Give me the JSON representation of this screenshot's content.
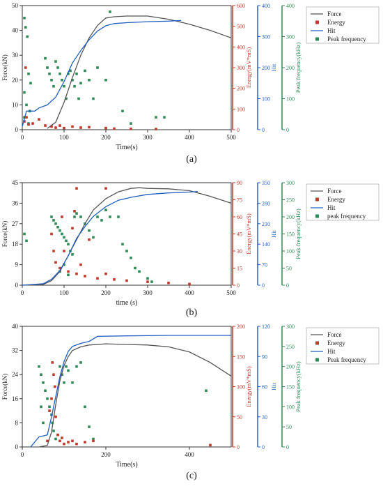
{
  "chart_data": [
    {
      "panel": "(a)",
      "type": "line",
      "xlabel": "Time(s)",
      "xlim": [
        0,
        500
      ],
      "xticks": [
        0,
        100,
        200,
        300,
        400,
        500
      ],
      "axes": [
        {
          "label": "Force(kN)",
          "lim": [
            0,
            50
          ],
          "ticks": [
            0,
            10,
            20,
            30,
            40,
            50
          ],
          "color": "#333333"
        },
        {
          "label": "Energy(mV*mS)",
          "lim": [
            0,
            600
          ],
          "ticks": [
            0,
            100,
            200,
            300,
            400,
            500,
            600
          ],
          "color": "#c0392b"
        },
        {
          "label": "Hit",
          "lim": [
            0,
            400
          ],
          "ticks": [
            0,
            100,
            200,
            300,
            400
          ],
          "color": "#1f5fbf"
        },
        {
          "label": "Peak frequency(kHz)",
          "lim": [
            0,
            400
          ],
          "ticks": [
            0,
            100,
            200,
            300,
            400
          ],
          "color": "#2e8b57"
        }
      ],
      "legend": [
        "Force",
        "Energy",
        "Hit",
        "Peak frequency"
      ],
      "series": [
        {
          "name": "Force",
          "axis": 0,
          "x": [
            60,
            80,
            100,
            120,
            140,
            160,
            180,
            200,
            220,
            250,
            300,
            350,
            400,
            450,
            500
          ],
          "y": [
            0.5,
            3,
            11,
            21,
            30,
            37,
            42,
            45,
            45.5,
            45.8,
            45.8,
            44.5,
            42.5,
            40,
            37
          ]
        },
        {
          "name": "Hit",
          "axis": 2,
          "x": [
            0,
            10,
            30,
            40,
            60,
            80,
            100,
            120,
            140,
            160,
            180,
            200,
            220,
            250,
            300,
            350,
            380
          ],
          "y": [
            10,
            60,
            60,
            70,
            80,
            105,
            155,
            215,
            255,
            290,
            318,
            335,
            342,
            345,
            348,
            350,
            352
          ]
        }
      ],
      "energy": [
        [
          5,
          40
        ],
        [
          8,
          300
        ],
        [
          10,
          60
        ],
        [
          15,
          25
        ],
        [
          25,
          30
        ],
        [
          40,
          50
        ],
        [
          55,
          20
        ],
        [
          70,
          15
        ],
        [
          80,
          10
        ],
        [
          90,
          20
        ],
        [
          100,
          8
        ],
        [
          120,
          15
        ],
        [
          140,
          10
        ],
        [
          160,
          12
        ],
        [
          200,
          8
        ],
        [
          220,
          5
        ],
        [
          260,
          4
        ],
        [
          320,
          3
        ]
      ],
      "peak_frequency": [
        [
          5,
          360
        ],
        [
          8,
          330
        ],
        [
          12,
          300
        ],
        [
          15,
          180
        ],
        [
          20,
          150
        ],
        [
          5,
          120
        ],
        [
          10,
          80
        ],
        [
          18,
          60
        ],
        [
          5,
          40
        ],
        [
          15,
          20
        ],
        [
          55,
          230
        ],
        [
          60,
          200
        ],
        [
          65,
          180
        ],
        [
          70,
          160
        ],
        [
          75,
          140
        ],
        [
          80,
          220
        ],
        [
          85,
          200
        ],
        [
          90,
          180
        ],
        [
          95,
          160
        ],
        [
          100,
          140
        ],
        [
          105,
          100
        ],
        [
          110,
          180
        ],
        [
          115,
          190
        ],
        [
          120,
          160
        ],
        [
          125,
          140
        ],
        [
          130,
          180
        ],
        [
          135,
          100
        ],
        [
          140,
          150
        ],
        [
          150,
          190
        ],
        [
          160,
          160
        ],
        [
          170,
          100
        ],
        [
          180,
          200
        ],
        [
          200,
          160
        ],
        [
          210,
          380
        ],
        [
          240,
          60
        ],
        [
          260,
          20
        ],
        [
          320,
          40
        ],
        [
          340,
          40
        ]
      ]
    },
    {
      "panel": "(b)",
      "type": "line",
      "xlabel": "time (s)",
      "xlim": [
        0,
        500
      ],
      "xticks": [
        0,
        100,
        200,
        300,
        400,
        500
      ],
      "axes": [
        {
          "label": "Force(kN)",
          "lim": [
            0,
            45
          ],
          "ticks": [
            0,
            9,
            18,
            27,
            36,
            45
          ],
          "color": "#333333"
        },
        {
          "label": "Energy(mV*mS)",
          "lim": [
            0,
            90
          ],
          "ticks": [
            0,
            15,
            30,
            45,
            60,
            75,
            90
          ],
          "color": "#c0392b"
        },
        {
          "label": "Hit",
          "lim": [
            0,
            350
          ],
          "ticks": [
            0,
            70,
            140,
            210,
            280,
            350
          ],
          "color": "#1f5fbf"
        },
        {
          "label": "Peak frequency(kHz)",
          "lim": [
            0,
            300
          ],
          "ticks": [
            0,
            50,
            100,
            150,
            200,
            250,
            300
          ],
          "color": "#2e8b57"
        }
      ],
      "legend": [
        "Force",
        "Energy",
        "Hit",
        "peak frequency"
      ],
      "series": [
        {
          "name": "Force",
          "axis": 0,
          "x": [
            0,
            50,
            70,
            90,
            110,
            130,
            150,
            170,
            200,
            230,
            260,
            280,
            300,
            350,
            400,
            450,
            500
          ],
          "y": [
            0,
            0.3,
            2,
            6,
            13,
            20,
            27,
            33,
            38,
            41,
            42.5,
            42.8,
            42.5,
            42.3,
            41.5,
            39,
            36
          ]
        },
        {
          "name": "Hit",
          "axis": 2,
          "x": [
            0,
            50,
            70,
            90,
            110,
            130,
            150,
            170,
            200,
            230,
            260,
            300,
            350,
            400,
            420
          ],
          "y": [
            0,
            5,
            20,
            50,
            100,
            160,
            200,
            235,
            268,
            290,
            300,
            310,
            315,
            318,
            320
          ]
        }
      ],
      "energy": [
        [
          70,
          45
        ],
        [
          75,
          30
        ],
        [
          80,
          20
        ],
        [
          90,
          15
        ],
        [
          95,
          60
        ],
        [
          100,
          30
        ],
        [
          110,
          12
        ],
        [
          120,
          50
        ],
        [
          130,
          10
        ],
        [
          140,
          18
        ],
        [
          150,
          8
        ],
        [
          160,
          40
        ],
        [
          180,
          6
        ],
        [
          200,
          10
        ],
        [
          220,
          5
        ],
        [
          250,
          4
        ],
        [
          300,
          3
        ],
        [
          350,
          2
        ],
        [
          400,
          1
        ],
        [
          130,
          85
        ],
        [
          200,
          85
        ],
        [
          125,
          65
        ]
      ],
      "peak_frequency": [
        [
          70,
          200
        ],
        [
          75,
          190
        ],
        [
          80,
          180
        ],
        [
          85,
          170
        ],
        [
          90,
          160
        ],
        [
          95,
          150
        ],
        [
          100,
          140
        ],
        [
          105,
          130
        ],
        [
          110,
          120
        ],
        [
          115,
          100
        ],
        [
          120,
          90
        ],
        [
          125,
          200
        ],
        [
          130,
          210
        ],
        [
          140,
          200
        ],
        [
          150,
          180
        ],
        [
          160,
          160
        ],
        [
          170,
          140
        ],
        [
          180,
          200
        ],
        [
          190,
          190
        ],
        [
          200,
          220
        ],
        [
          210,
          200
        ],
        [
          230,
          200
        ],
        [
          240,
          120
        ],
        [
          250,
          100
        ],
        [
          260,
          80
        ],
        [
          270,
          50
        ],
        [
          280,
          40
        ],
        [
          300,
          20
        ],
        [
          310,
          10
        ],
        [
          90,
          40
        ],
        [
          100,
          60
        ],
        [
          110,
          30
        ],
        [
          5,
          150
        ],
        [
          10,
          130
        ]
      ]
    },
    {
      "panel": "(c)",
      "type": "line",
      "xlabel": "Time(s)",
      "xlim": [
        0,
        500
      ],
      "xticks": [
        0,
        200,
        400
      ],
      "axes": [
        {
          "label": "Force(kN)",
          "lim": [
            0,
            40
          ],
          "ticks": [
            0,
            8,
            16,
            24,
            32,
            40
          ],
          "color": "#333333"
        },
        {
          "label": "Energy(mV*mS)",
          "lim": [
            0,
            200
          ],
          "ticks": [
            0,
            50,
            100,
            150,
            200
          ],
          "color": "#c0392b"
        },
        {
          "label": "Hit",
          "lim": [
            0,
            120
          ],
          "ticks": [
            0,
            30,
            60,
            90,
            120
          ],
          "color": "#1f5fbf"
        },
        {
          "label": "Peak frequency(kHz)",
          "lim": [
            0,
            300
          ],
          "ticks": [
            0,
            50,
            100,
            150,
            200,
            250,
            300
          ],
          "color": "#2e8b57"
        }
      ],
      "legend": [
        "Force",
        "Energy",
        "Hit",
        "Peak frequency"
      ],
      "series": [
        {
          "name": "Force",
          "axis": 0,
          "x": [
            40,
            60,
            70,
            80,
            90,
            100,
            110,
            120,
            140,
            160,
            200,
            250,
            300,
            350,
            400,
            450,
            500
          ],
          "y": [
            0,
            0.5,
            5,
            14,
            22,
            27,
            30,
            32,
            33.2,
            33.8,
            34.2,
            34,
            33.8,
            33.2,
            31.5,
            28,
            23.5
          ]
        },
        {
          "name": "Hit",
          "axis": 2,
          "x": [
            20,
            40,
            60,
            70,
            80,
            90,
            100,
            110,
            120,
            140,
            160,
            180,
            250,
            350,
            450,
            500
          ],
          "y": [
            0,
            10,
            12,
            30,
            50,
            70,
            85,
            95,
            100,
            103,
            105,
            110,
            110.5,
            111,
            111,
            111
          ]
        }
      ],
      "energy": [
        [
          60,
          10
        ],
        [
          65,
          60
        ],
        [
          70,
          80
        ],
        [
          72,
          140
        ],
        [
          75,
          120
        ],
        [
          78,
          100
        ],
        [
          80,
          50
        ],
        [
          85,
          20
        ],
        [
          90,
          10
        ],
        [
          95,
          15
        ],
        [
          100,
          5
        ],
        [
          110,
          8
        ],
        [
          120,
          10
        ],
        [
          130,
          5
        ],
        [
          150,
          8
        ],
        [
          170,
          10
        ],
        [
          450,
          3
        ]
      ],
      "peak_frequency": [
        [
          40,
          200
        ],
        [
          45,
          180
        ],
        [
          50,
          160
        ],
        [
          55,
          140
        ],
        [
          60,
          120
        ],
        [
          65,
          100
        ],
        [
          70,
          80
        ],
        [
          72,
          60
        ],
        [
          75,
          40
        ],
        [
          80,
          20
        ],
        [
          85,
          30
        ],
        [
          90,
          200
        ],
        [
          95,
          180
        ],
        [
          100,
          160
        ],
        [
          105,
          200
        ],
        [
          110,
          190
        ],
        [
          120,
          160
        ],
        [
          130,
          200
        ],
        [
          140,
          210
        ],
        [
          150,
          100
        ],
        [
          160,
          50
        ],
        [
          170,
          20
        ],
        [
          440,
          140
        ],
        [
          45,
          100
        ],
        [
          50,
          60
        ]
      ]
    }
  ]
}
